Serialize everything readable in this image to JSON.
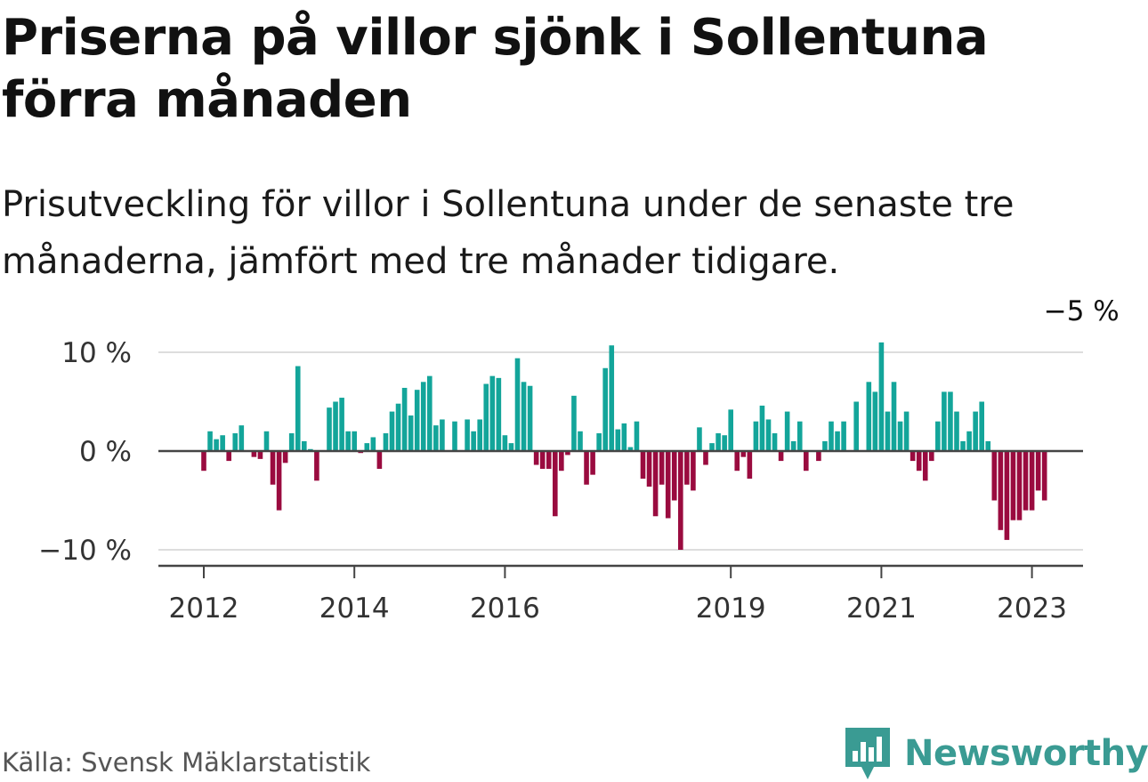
{
  "title": "Priserna på villor sjönk i Sollentuna förra månaden",
  "subtitle": "Prisutveckling för villor i Sollentuna under de senaste tre månaderna, jämfört med tre månader tidigare.",
  "source": "Källa: Svensk Mäklarstatistik",
  "brand": "Newsworthy",
  "colors": {
    "positive": "#13a59a",
    "negative": "#9a0b3f",
    "brand": "#3a9b93",
    "grid": "#dddddd",
    "axis": "#444444"
  },
  "chart_data": {
    "type": "bar",
    "title": "",
    "xlabel": "",
    "ylabel": "",
    "ylim": [
      -11,
      10.8
    ],
    "y_ticks": [
      {
        "value": 10,
        "label": "10 %"
      },
      {
        "value": 0,
        "label": "0 %"
      },
      {
        "value": -10,
        "label": "−10 %"
      }
    ],
    "x_ticks": [
      {
        "index": 0,
        "label": "2012"
      },
      {
        "index": 24,
        "label": "2014"
      },
      {
        "index": 48,
        "label": "2016"
      },
      {
        "index": 84,
        "label": "2019"
      },
      {
        "index": 108,
        "label": "2021"
      },
      {
        "index": 132,
        "label": "2023"
      }
    ],
    "start": "2012-01",
    "values": [
      -2,
      2,
      1.2,
      1.6,
      -1,
      1.8,
      2.6,
      0,
      -0.6,
      -0.8,
      2,
      -3.4,
      -6,
      -1.2,
      1.8,
      8.6,
      1,
      0.2,
      -3,
      0,
      4.4,
      5,
      5.4,
      2,
      2,
      -0.2,
      0.8,
      1.4,
      -1.8,
      1.8,
      4,
      4.8,
      6.4,
      3.6,
      6.2,
      7,
      7.6,
      2.6,
      3.2,
      0,
      3,
      0,
      3.2,
      2,
      3.2,
      6.8,
      7.6,
      7.4,
      1.6,
      0.8,
      9.4,
      7,
      6.6,
      -1.4,
      -1.8,
      -1.8,
      -6.6,
      -2,
      -0.4,
      5.6,
      2,
      -3.4,
      -2.4,
      1.8,
      8.4,
      10.7,
      2.2,
      2.8,
      0.4,
      3,
      -2.8,
      -3.6,
      -6.6,
      -3.4,
      -6.8,
      -5,
      -10,
      -3.4,
      -4,
      2.4,
      -1.4,
      0.8,
      1.8,
      1.6,
      4.2,
      -2,
      -0.6,
      -2.8,
      3,
      4.6,
      3.2,
      1.8,
      -1,
      4,
      1,
      3,
      -2,
      0,
      -1,
      1,
      3,
      2,
      3,
      0,
      5,
      0,
      7,
      6,
      11,
      4,
      7,
      3,
      4,
      -1,
      -2,
      -3,
      -1,
      3,
      6,
      6,
      4,
      1,
      2,
      4,
      5,
      1,
      -5,
      -8,
      -9,
      -7,
      -7,
      -6,
      -6,
      -4,
      -5
    ],
    "annotations": [
      {
        "index": 135,
        "text": "−5 %"
      }
    ]
  }
}
